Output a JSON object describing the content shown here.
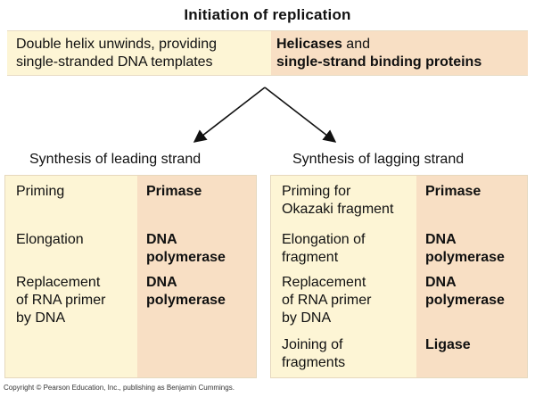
{
  "title": "Initiation of replication",
  "initiation": {
    "process_lines": [
      "Double helix unwinds, providing",
      "single-stranded DNA templates"
    ],
    "enzyme_line1_bold": "Helicases",
    "enzyme_line1_rest": " and",
    "enzyme_line2": "single-strand binding proteins"
  },
  "leading": {
    "heading": "Synthesis of leading strand",
    "rows": [
      {
        "step": "Priming",
        "enzyme": "Primase"
      },
      {
        "step": "Elongation",
        "enzyme": "DNA\npolymerase"
      },
      {
        "step": "Replacement\nof RNA primer\nby DNA",
        "enzyme": "DNA\npolymerase"
      }
    ]
  },
  "lagging": {
    "heading": "Synthesis of lagging strand",
    "rows": [
      {
        "step": "Priming for\nOkazaki fragment",
        "enzyme": "Primase"
      },
      {
        "step": "Elongation of\nfragment",
        "enzyme": "DNA\npolymerase"
      },
      {
        "step": "Replacement\nof RNA primer\nby DNA",
        "enzyme": "DNA\npolymerase"
      },
      {
        "step": "Joining of\nfragments",
        "enzyme": "Ligase"
      }
    ]
  },
  "copyright": "Copyright © Pearson Education, Inc., publishing as Benjamin Cummings."
}
